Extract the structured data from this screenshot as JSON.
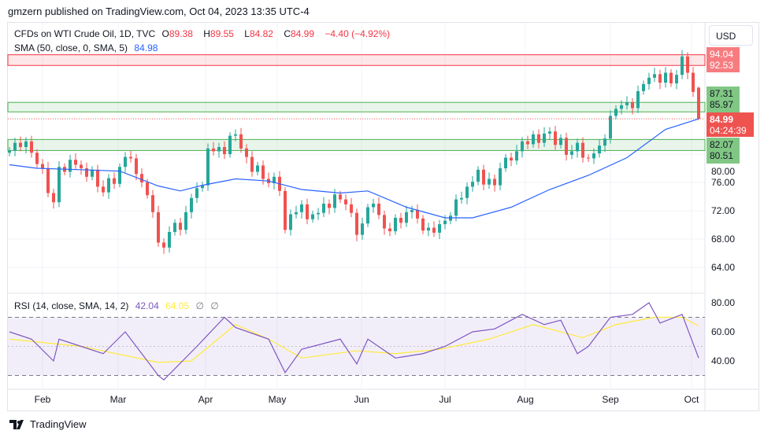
{
  "header": {
    "published": "gmzern published on TradingView.com, Oct 04, 2023 13:35 UTC-4"
  },
  "legend": {
    "symbol": "CFDs on WTI Crude Oil, 1D, TVC",
    "o_label": "O",
    "o": "89.38",
    "h_label": "H",
    "h": "89.55",
    "l_label": "L",
    "l": "84.82",
    "c_label": "C",
    "c": "84.99",
    "change": "−4.40 (−4.92%)",
    "sma_label": "SMA (50, close, 0, SMA, 5)",
    "sma_value": "84.98",
    "rsi_label": "RSI (14, close, SMA, 14, 2)",
    "rsi_value": "42.04",
    "rsi_ma_value": "64.05",
    "rsi_extra1": "∅",
    "rsi_extra2": "∅"
  },
  "currency": "USD",
  "price_labels": {
    "r1": "94.04",
    "r2": "92.53",
    "g1": "87.31",
    "g2": "85.97",
    "last": "84.99",
    "countdown": "04:24:39",
    "g3": "82.07",
    "g4": "80.51"
  },
  "brand": {
    "name": "TradingView"
  },
  "colors": {
    "up": "#26a69a",
    "down": "#ef5350",
    "sma": "#2962ff",
    "rsi": "#7e57c2",
    "rsi_ma": "#ffeb3b",
    "zone_red": "#f23645",
    "zone_green": "#4caf50"
  },
  "chart_data": [
    {
      "type": "candlestick",
      "title": "CFDs on WTI Crude Oil, 1D, TVC",
      "x_ticks": [
        "Feb",
        "Mar",
        "Apr",
        "May",
        "Jun",
        "Jul",
        "Aug",
        "Sep",
        "Oct"
      ],
      "y_ticks": [
        "64.00",
        "68.00",
        "72.00",
        "76.00",
        "80.00"
      ],
      "ylim": [
        61.5,
        97
      ],
      "zones": [
        {
          "from": 92.53,
          "to": 94.04,
          "color": "red"
        },
        {
          "from": 85.97,
          "to": 87.31,
          "color": "green"
        },
        {
          "from": 80.51,
          "to": 82.07,
          "color": "green"
        }
      ],
      "closes": [
        80.5,
        81.6,
        81.0,
        81.8,
        80.2,
        78.6,
        78.0,
        74.5,
        73.2,
        78.2,
        77.5,
        79.2,
        78.5,
        78.0,
        76.8,
        77.8,
        75.4,
        74.6,
        76.6,
        75.8,
        78.2,
        79.6,
        79.4,
        77.2,
        76.0,
        74.2,
        71.8,
        67.5,
        66.8,
        69.0,
        70.3,
        69.3,
        71.8,
        73.8,
        75.2,
        75.6,
        80.8,
        80.4,
        81.0,
        80.0,
        82.6,
        82.8,
        80.8,
        79.6,
        77.5,
        78.4,
        76.5,
        75.9,
        76.8,
        74.8,
        69.3,
        71.5,
        71.8,
        72.9,
        70.8,
        71.5,
        71.7,
        73.0,
        72.4,
        74.3,
        73.6,
        72.9,
        71.7,
        68.6,
        70.2,
        72.5,
        73.0,
        71.4,
        69.5,
        69.1,
        71.0,
        70.3,
        71.8,
        72.1,
        70.9,
        69.2,
        69.6,
        68.9,
        70.1,
        70.6,
        71.3,
        73.6,
        73.8,
        75.4,
        76.1,
        77.8,
        75.7,
        76.5,
        75.6,
        78.0,
        79.5,
        79.1,
        80.4,
        81.8,
        81.4,
        82.8,
        81.6,
        82.9,
        83.2,
        81.3,
        82.3,
        79.9,
        80.4,
        81.6,
        79.5,
        79.4,
        80.1,
        81.2,
        82.2,
        85.4,
        86.4,
        86.9,
        87.3,
        86.5,
        88.9,
        89.9,
        90.8,
        91.3,
        90.1,
        91.5,
        90.0,
        91.2,
        93.8,
        91.5,
        88.8,
        84.99
      ],
      "last_open": 89.38,
      "last_high": 89.55,
      "last_low": 84.82,
      "sma": [
        [
          0,
          78.5
        ],
        [
          5,
          78
        ],
        [
          13,
          77.8
        ],
        [
          20,
          77.6
        ],
        [
          27,
          75.5
        ],
        [
          31,
          74.8
        ],
        [
          35,
          75.6
        ],
        [
          41,
          76.5
        ],
        [
          47,
          76.2
        ],
        [
          53,
          75
        ],
        [
          60,
          74.5
        ],
        [
          65,
          74.8
        ],
        [
          72,
          72.5
        ],
        [
          79,
          71
        ],
        [
          84,
          71
        ],
        [
          91,
          72.5
        ],
        [
          98,
          75
        ],
        [
          105,
          77
        ],
        [
          112,
          79.5
        ],
        [
          119,
          83.5
        ],
        [
          125,
          84.98
        ]
      ]
    },
    {
      "type": "line",
      "title": "RSI (14, close, SMA, 14, 2)",
      "y_ticks": [
        "40.00",
        "60.00",
        "80.00"
      ],
      "bands": [
        30,
        70
      ],
      "rsi": [
        [
          0,
          60
        ],
        [
          4,
          55
        ],
        [
          8,
          40
        ],
        [
          9,
          55
        ],
        [
          13,
          50
        ],
        [
          17,
          45
        ],
        [
          21,
          60
        ],
        [
          27,
          30
        ],
        [
          28,
          27
        ],
        [
          34,
          50
        ],
        [
          39,
          70
        ],
        [
          41,
          63
        ],
        [
          47,
          55
        ],
        [
          50,
          32
        ],
        [
          53,
          48
        ],
        [
          60,
          55
        ],
        [
          63,
          38
        ],
        [
          65,
          55
        ],
        [
          70,
          42
        ],
        [
          75,
          45
        ],
        [
          79,
          50
        ],
        [
          84,
          60
        ],
        [
          88,
          62
        ],
        [
          93,
          72
        ],
        [
          97,
          65
        ],
        [
          100,
          68
        ],
        [
          103,
          45
        ],
        [
          105,
          50
        ],
        [
          109,
          70
        ],
        [
          113,
          72
        ],
        [
          116,
          80
        ],
        [
          118,
          66
        ],
        [
          122,
          72
        ],
        [
          124,
          52
        ],
        [
          125,
          42.04
        ]
      ],
      "rsi_ma": [
        [
          0,
          55
        ],
        [
          13,
          50
        ],
        [
          27,
          39
        ],
        [
          33,
          40
        ],
        [
          41,
          65
        ],
        [
          47,
          55
        ],
        [
          53,
          42
        ],
        [
          63,
          47
        ],
        [
          70,
          45
        ],
        [
          78,
          48
        ],
        [
          87,
          55
        ],
        [
          95,
          65
        ],
        [
          104,
          56
        ],
        [
          110,
          65
        ],
        [
          117,
          70
        ],
        [
          122,
          70
        ],
        [
          125,
          64.05
        ]
      ]
    }
  ]
}
